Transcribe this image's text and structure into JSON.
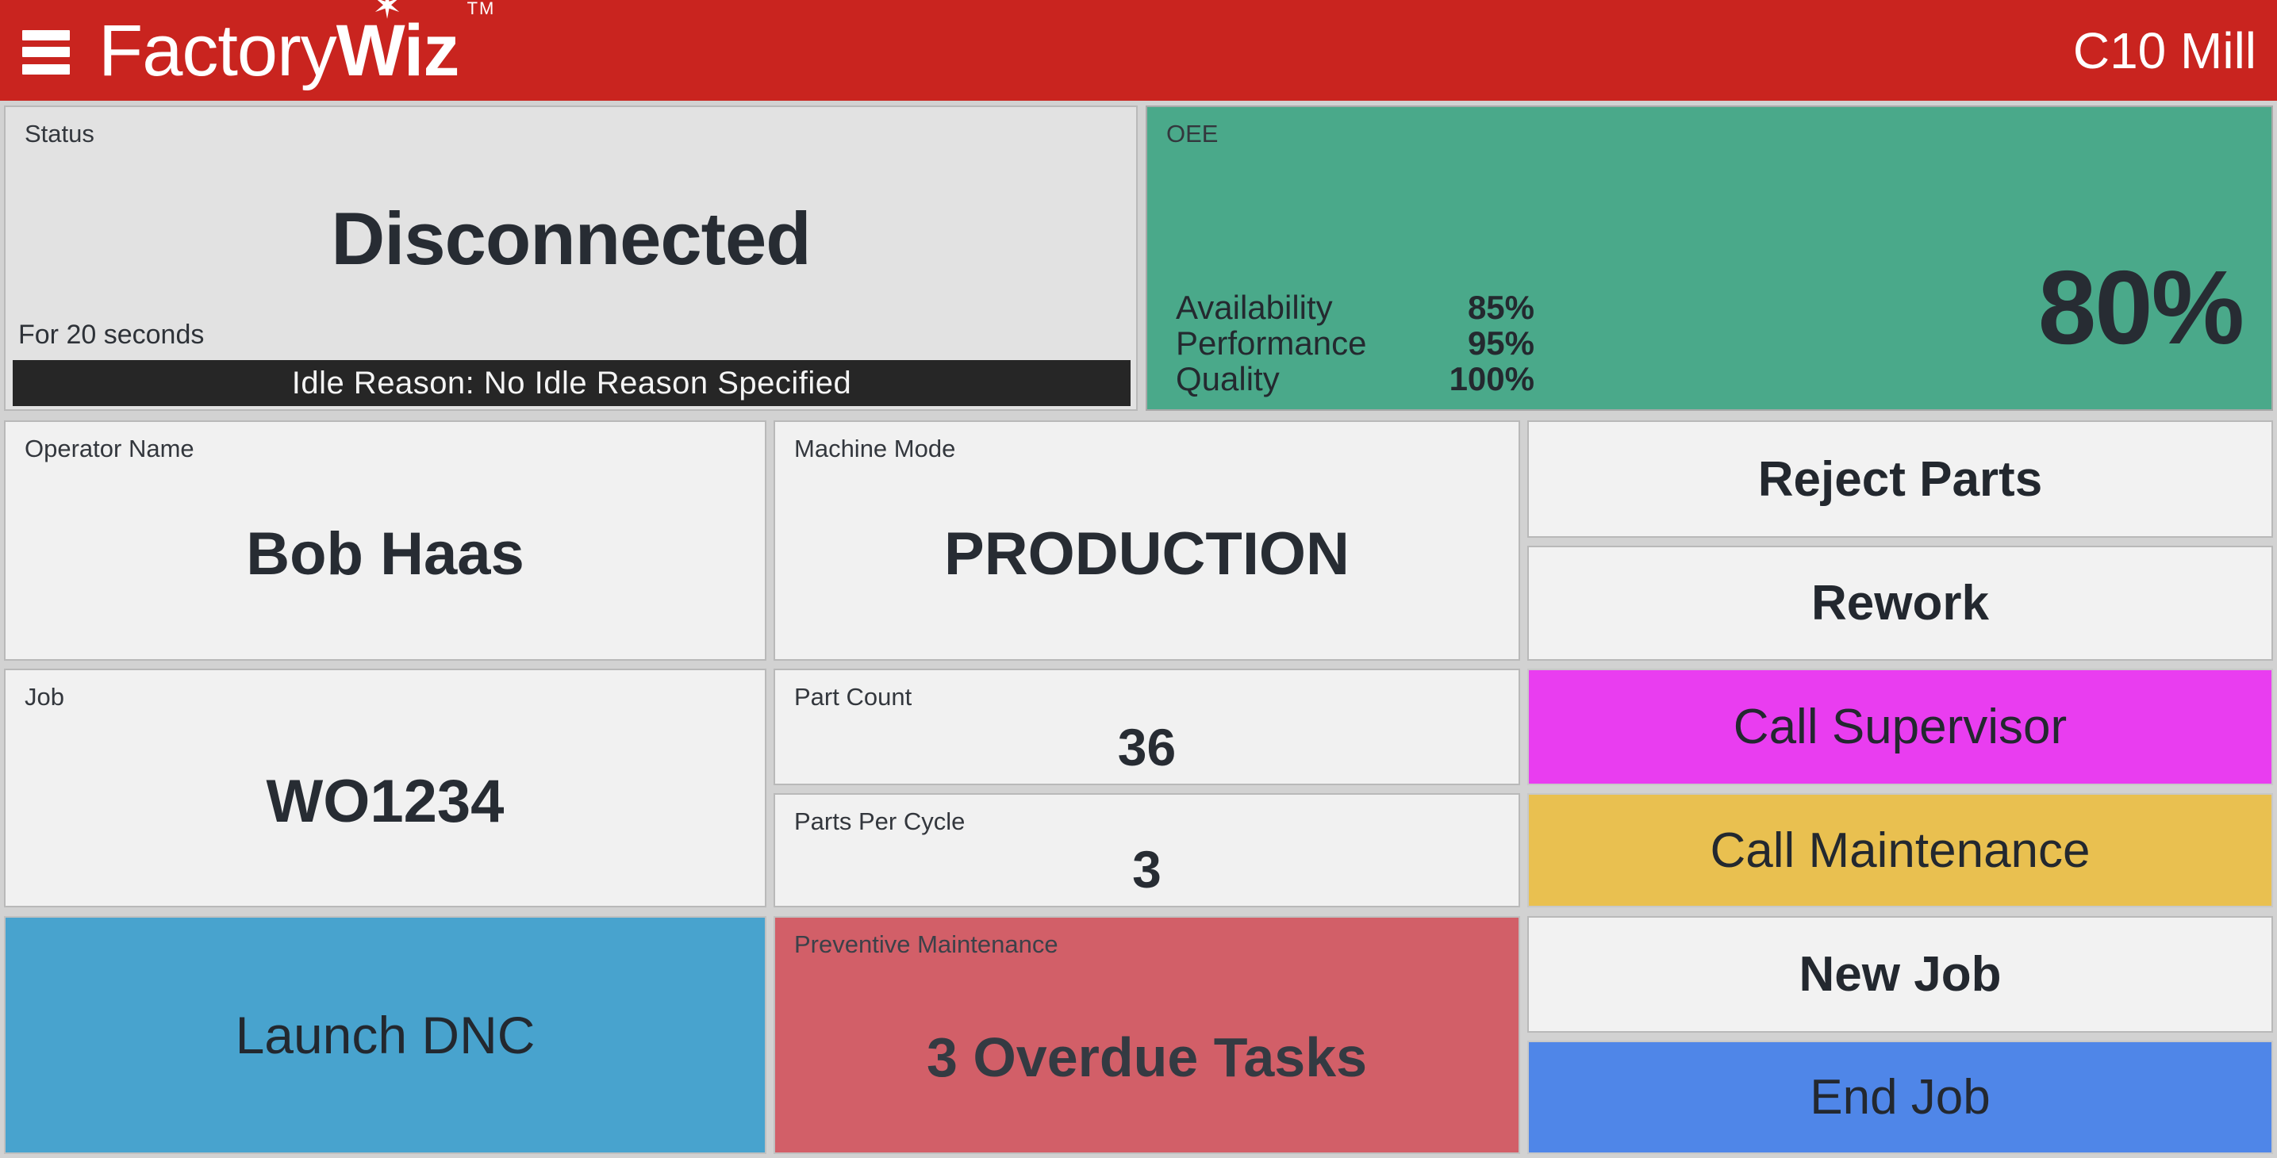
{
  "header": {
    "logo_factory": "Factory",
    "logo_wiz": "Wiz",
    "logo_star": "✶",
    "logo_tm": "TM",
    "machine_name": "C10 Mill"
  },
  "status": {
    "label": "Status",
    "value": "Disconnected",
    "duration": "For 20 seconds",
    "idle_reason": "Idle Reason: No Idle Reason Specified"
  },
  "oee": {
    "label": "OEE",
    "value": "80%",
    "metrics": [
      {
        "label": "Availability",
        "value": "85%"
      },
      {
        "label": "Performance",
        "value": "95%"
      },
      {
        "label": "Quality",
        "value": "100%"
      }
    ]
  },
  "operator": {
    "label": "Operator Name",
    "value": "Bob Haas"
  },
  "machine_mode": {
    "label": "Machine Mode",
    "value": "PRODUCTION"
  },
  "job": {
    "label": "Job",
    "value": "WO1234"
  },
  "part_count": {
    "label": "Part Count",
    "value": "36"
  },
  "parts_per_cycle": {
    "label": "Parts Per Cycle",
    "value": "3"
  },
  "preventive_maintenance": {
    "label": "Preventive Maintenance",
    "value": "3 Overdue Tasks"
  },
  "buttons": {
    "reject_parts": "Reject Parts",
    "rework": "Rework",
    "call_supervisor": "Call Supervisor",
    "call_maintenance": "Call Maintenance",
    "new_job": "New Job",
    "end_job": "End Job",
    "launch_dnc": "Launch DNC"
  },
  "colors": {
    "header_red": "#c9241f",
    "oee_green": "#4aa98a",
    "supervisor_magenta": "#e93df0",
    "maintenance_yellow": "#e9c050",
    "dnc_blue": "#48a3ce",
    "pm_red": "#d25f68",
    "end_job_blue": "#4f86e8",
    "status_gray": "#e2e2e2",
    "tile_gray": "#f1f1f1",
    "idle_bar_black": "#262626",
    "text_dark": "#272c33"
  }
}
